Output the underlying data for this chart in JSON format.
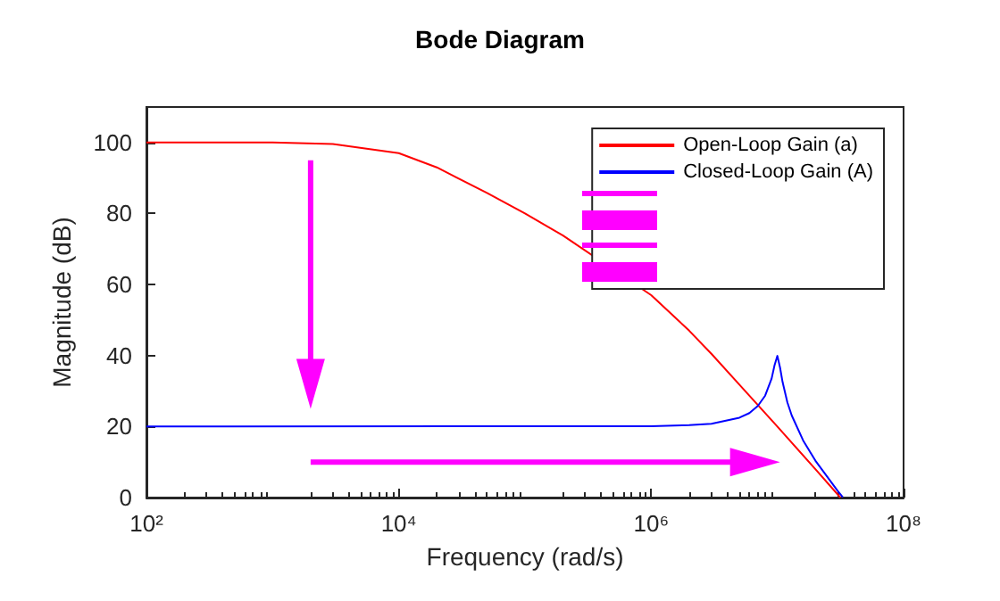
{
  "chart_data": {
    "type": "line",
    "title": "Bode Diagram",
    "xlabel": "Frequency (rad/s)",
    "ylabel": "Magnitude (dB)",
    "log": "x",
    "xlim": [
      100,
      100000000
    ],
    "xticks": [
      {
        "value": 100,
        "label": "10²"
      },
      {
        "value": 10000,
        "label": "10⁴"
      },
      {
        "value": 1000000,
        "label": "10⁶"
      },
      {
        "value": 100000000,
        "label": "10⁸"
      }
    ],
    "ylim": [
      0,
      110
    ],
    "yticks": [
      0,
      20,
      40,
      60,
      80,
      100
    ],
    "grid": false,
    "legend": "top right",
    "marker": "none",
    "line_style": "solid",
    "series": [
      {
        "name": "Open-Loop Gain (a)",
        "color": "#ff0000",
        "x": [
          100,
          1000,
          3000,
          10000,
          20000,
          50000,
          100000,
          200000,
          500000,
          1000000,
          2000000,
          3000000,
          5000000,
          10000000,
          20000000,
          31600000
        ],
        "values": [
          100,
          100,
          99.6,
          97,
          93,
          85.8,
          80,
          73.8,
          null,
          57,
          47,
          40.5,
          31.8,
          20,
          8,
          0
        ]
      },
      {
        "name": "Closed-Loop Gain (A)",
        "color": "#0000ff",
        "x": [
          100,
          1000000,
          2000000,
          3000000,
          5000000,
          6000000,
          7000000,
          8000000,
          9000000,
          9500000,
          10000000,
          10500000,
          11000000,
          12000000,
          13000000,
          16000000,
          20000000,
          30000000,
          33000000
        ],
        "values": [
          20,
          20.1,
          20.4,
          20.8,
          22.5,
          23.8,
          25.8,
          28.7,
          33.5,
          37.3,
          39.9,
          36.6,
          32.5,
          26.8,
          23.1,
          16.1,
          10.4,
          1.9,
          0.1
        ]
      }
    ]
  }
}
